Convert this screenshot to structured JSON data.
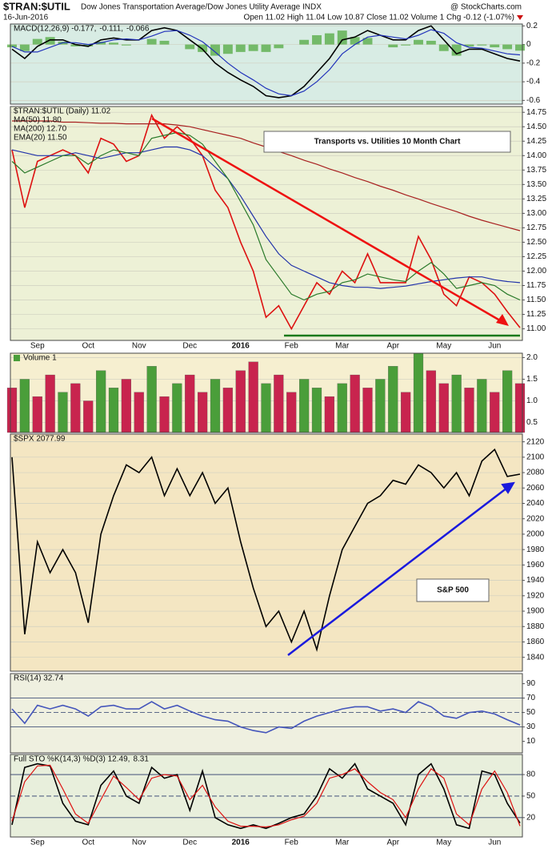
{
  "header": {
    "symbol": "$TRAN:$UTIL",
    "description": "Dow Jones Transportation Average/Dow Jones Utility Average INDX",
    "source": "@ StockCharts.com",
    "date": "16-Jun-2016",
    "quote": "Open 11.02 High 11.04 Low 10.87 Close 11.02 Volume 1 Chg -0.12 (-1.07%)"
  },
  "chart_data": [
    {
      "type": "line",
      "legend": "inline",
      "background": "#d8ece4",
      "grid": true,
      "ylim": [
        -0.64,
        0.22
      ],
      "yticks": [
        0.2,
        0,
        -0.2,
        -0.4,
        -0.6
      ],
      "series": [
        {
          "name": "MACD(12,26,9) -0.177,",
          "color": "#000000",
          "values": [
            -0.05,
            -0.15,
            -0.02,
            0.05,
            0.05,
            0.0,
            -0.02,
            0.05,
            0.07,
            0.05,
            0.05,
            0.15,
            0.18,
            0.15,
            0.05,
            -0.05,
            -0.2,
            -0.3,
            -0.38,
            -0.45,
            -0.55,
            -0.57,
            -0.55,
            -0.45,
            -0.3,
            -0.15,
            0.05,
            0.08,
            0.15,
            0.1,
            0.05,
            0.05,
            0.15,
            0.2,
            0.05,
            -0.1,
            -0.05,
            -0.05,
            -0.1,
            -0.15,
            -0.177
          ]
        },
        {
          "name": "-0.111,",
          "color": "#2233bb",
          "values": [
            -0.02,
            -0.08,
            -0.08,
            -0.03,
            0.02,
            0.02,
            0.0,
            0.02,
            0.05,
            0.06,
            0.05,
            0.09,
            0.14,
            0.15,
            0.1,
            0.03,
            -0.08,
            -0.2,
            -0.3,
            -0.38,
            -0.47,
            -0.53,
            -0.55,
            -0.5,
            -0.4,
            -0.27,
            -0.1,
            0.0,
            0.08,
            0.1,
            0.08,
            0.06,
            0.1,
            0.16,
            0.12,
            0.02,
            -0.03,
            -0.04,
            -0.07,
            -0.1,
            -0.111
          ]
        },
        {
          "name": "-0.066",
          "color": "#5aae4a",
          "type": "bar",
          "values": [
            -0.03,
            -0.07,
            0.06,
            0.08,
            0.03,
            -0.02,
            -0.02,
            0.03,
            0.02,
            -0.01,
            0,
            0.06,
            0.04,
            0,
            -0.05,
            -0.08,
            -0.12,
            -0.1,
            -0.08,
            -0.07,
            -0.08,
            -0.04,
            0,
            0.05,
            0.1,
            0.12,
            0.15,
            0.08,
            0.07,
            0,
            -0.03,
            -0.01,
            0.05,
            0.04,
            -0.07,
            -0.12,
            -0.02,
            -0.01,
            -0.03,
            -0.05,
            -0.066
          ]
        }
      ]
    },
    {
      "type": "line",
      "legend": "stacked",
      "background": "#edf1d6",
      "grid": true,
      "annotation": "Transports vs. Utilities 10 Month Chart",
      "categories": [
        null,
        null,
        "Sep",
        null,
        null,
        null,
        "Oct",
        null,
        null,
        null,
        "Nov",
        null,
        null,
        null,
        "Dec",
        null,
        null,
        null,
        "2016",
        null,
        null,
        null,
        "Feb",
        null,
        null,
        null,
        "Mar",
        null,
        null,
        null,
        "Apr",
        null,
        null,
        null,
        "May",
        null,
        null,
        null,
        "Jun",
        null,
        null
      ],
      "ylim": [
        10.8,
        14.85
      ],
      "yticks": [
        {
          "value": 11,
          "label": "11.00"
        },
        11.25,
        {
          "value": 11.5,
          "label": "11.50"
        },
        11.75,
        {
          "value": 12,
          "label": "12.00"
        },
        12.25,
        {
          "value": 12.5,
          "label": "12.50"
        },
        12.75,
        {
          "value": 13,
          "label": "13.00"
        },
        13.25,
        {
          "value": 13.5,
          "label": "13.50"
        },
        13.75,
        {
          "value": 14,
          "label": "14.00"
        },
        14.25,
        {
          "value": 14.5,
          "label": "14.50"
        },
        14.75
      ],
      "series": [
        {
          "name": "$TRAN:$UTIL (Daily) 11.02",
          "color": "#dd1111",
          "values": [
            14.1,
            13.1,
            13.9,
            14.0,
            14.1,
            14.0,
            13.7,
            14.3,
            14.2,
            13.9,
            14.0,
            14.7,
            14.3,
            14.5,
            14.3,
            14.0,
            13.4,
            13.1,
            12.5,
            12.0,
            11.2,
            11.4,
            11.0,
            11.4,
            11.8,
            11.6,
            12.0,
            11.8,
            12.3,
            11.8,
            11.8,
            11.8,
            12.6,
            12.2,
            11.6,
            11.4,
            11.9,
            11.8,
            11.6,
            11.3,
            11.02
          ]
        },
        {
          "name": "MA(50) 11.80",
          "color": "#2233aa",
          "values": [
            14.1,
            14.05,
            14.0,
            14.0,
            14.0,
            14.05,
            14.0,
            13.95,
            14.0,
            14.05,
            14.05,
            14.1,
            14.15,
            14.15,
            14.1,
            14.0,
            13.8,
            13.6,
            13.3,
            12.95,
            12.6,
            12.3,
            12.1,
            12.0,
            11.9,
            11.8,
            11.75,
            11.72,
            11.72,
            11.7,
            11.72,
            11.74,
            11.78,
            11.82,
            11.85,
            11.88,
            11.9,
            11.9,
            11.85,
            11.82,
            11.8
          ]
        },
        {
          "name": "MA(200) 12.70",
          "color": "#a82020",
          "values": [
            14.6,
            14.6,
            14.6,
            14.6,
            14.58,
            14.58,
            14.57,
            14.56,
            14.56,
            14.55,
            14.55,
            14.55,
            14.55,
            14.53,
            14.5,
            14.45,
            14.4,
            14.35,
            14.3,
            14.22,
            14.15,
            14.07,
            14.0,
            13.92,
            13.85,
            13.77,
            13.7,
            13.62,
            13.55,
            13.47,
            13.4,
            13.32,
            13.25,
            13.17,
            13.1,
            13.03,
            12.95,
            12.88,
            12.82,
            12.76,
            12.7
          ]
        },
        {
          "name": "EMA(20) 11.50",
          "color": "#2a7a2a",
          "values": [
            13.9,
            13.7,
            13.8,
            13.9,
            14.0,
            14.0,
            13.85,
            14.0,
            14.1,
            14.05,
            14.0,
            14.3,
            14.35,
            14.4,
            14.35,
            14.2,
            13.9,
            13.6,
            13.2,
            12.8,
            12.2,
            11.9,
            11.6,
            11.5,
            11.6,
            11.65,
            11.8,
            11.85,
            11.95,
            11.9,
            11.85,
            11.82,
            12.0,
            12.15,
            11.95,
            11.7,
            11.75,
            11.8,
            11.75,
            11.6,
            11.5
          ]
        }
      ]
    },
    {
      "type": "bar",
      "legend": "inline",
      "background": "#f6efd0",
      "grid": true,
      "title": "Volume 1",
      "ylim": [
        0.27,
        2.1
      ],
      "yticks": [
        0.5,
        {
          "value": 1,
          "label": "1.0"
        },
        1.5,
        {
          "value": 2,
          "label": "2.0"
        }
      ],
      "values": [
        1.3,
        1.5,
        1.1,
        1.6,
        1.2,
        1.4,
        1.0,
        1.7,
        1.3,
        1.5,
        1.2,
        1.8,
        1.1,
        1.4,
        1.6,
        1.2,
        1.5,
        1.3,
        1.7,
        1.9,
        1.4,
        1.6,
        1.2,
        1.5,
        1.3,
        1.1,
        1.4,
        1.6,
        1.3,
        1.5,
        1.8,
        1.2,
        2.1,
        1.7,
        1.4,
        1.6,
        1.3,
        1.5,
        1.2,
        1.7,
        1.4
      ],
      "colors": [
        "#c8244e",
        "#4a9e3a",
        "#c8244e",
        "#c8244e",
        "#4a9e3a",
        "#c8244e",
        "#c8244e",
        "#4a9e3a",
        "#4a9e3a",
        "#c8244e",
        "#c8244e",
        "#4a9e3a",
        "#c8244e",
        "#4a9e3a",
        "#c8244e",
        "#c8244e",
        "#4a9e3a",
        "#c8244e",
        "#c8244e",
        "#c8244e",
        "#4a9e3a",
        "#c8244e",
        "#c8244e",
        "#4a9e3a",
        "#4a9e3a",
        "#c8244e",
        "#4a9e3a",
        "#c8244e",
        "#c8244e",
        "#4a9e3a",
        "#4a9e3a",
        "#c8244e",
        "#4a9e3a",
        "#c8244e",
        "#c8244e",
        "#4a9e3a",
        "#c8244e",
        "#4a9e3a",
        "#c8244e",
        "#4a9e3a",
        "#c8244e"
      ]
    },
    {
      "type": "line",
      "legend": "stacked",
      "background": "#f4e6c2",
      "grid": true,
      "annotation": "S&P 500",
      "ylim": [
        1822,
        2130
      ],
      "yticks": [
        1840,
        1860,
        1880,
        1900,
        1920,
        1940,
        1960,
        1980,
        2000,
        2020,
        2040,
        2060,
        2080,
        2100,
        2120
      ],
      "series": [
        {
          "name": "$SPX 2077.99",
          "color": "#000000",
          "values": [
            2100,
            1870,
            1990,
            1950,
            1980,
            1950,
            1885,
            2000,
            2050,
            2090,
            2080,
            2100,
            2050,
            2085,
            2050,
            2080,
            2040,
            2060,
            1990,
            1930,
            1880,
            1900,
            1860,
            1900,
            1850,
            1920,
            1980,
            2010,
            2040,
            2050,
            2070,
            2065,
            2090,
            2080,
            2060,
            2080,
            2050,
            2095,
            2110,
            2075,
            2077.99
          ]
        }
      ]
    },
    {
      "type": "line",
      "legend": "stacked",
      "background": "#eff0e0",
      "grid": false,
      "ylim": [
        -6,
        104
      ],
      "yticks": [
        10,
        30,
        50,
        70,
        90
      ],
      "reference_lines": [
        30,
        50,
        70
      ],
      "series": [
        {
          "name": "RSI(14) 32.74",
          "color": "#4455bb",
          "values": [
            55,
            35,
            60,
            55,
            60,
            55,
            45,
            58,
            60,
            55,
            55,
            65,
            55,
            60,
            52,
            45,
            40,
            38,
            30,
            25,
            22,
            30,
            28,
            38,
            45,
            50,
            55,
            58,
            58,
            52,
            55,
            50,
            65,
            58,
            45,
            42,
            50,
            52,
            48,
            40,
            32.74
          ]
        }
      ]
    },
    {
      "type": "line",
      "legend": "inline",
      "background": "#e8efdc",
      "grid": false,
      "ylim": [
        -7,
        108
      ],
      "yticks": [
        20,
        50,
        80
      ],
      "reference_lines": [
        20,
        50,
        80
      ],
      "series": [
        {
          "name": "Full STO %K(14,3) %D(3) 12.49,",
          "color": "#000000",
          "values": [
            10,
            90,
            95,
            92,
            40,
            15,
            10,
            65,
            85,
            50,
            40,
            90,
            75,
            80,
            30,
            85,
            20,
            10,
            5,
            10,
            5,
            12,
            20,
            25,
            50,
            88,
            75,
            95,
            60,
            50,
            40,
            10,
            80,
            95,
            60,
            10,
            5,
            85,
            80,
            40,
            12.49
          ]
        },
        {
          "name": "8.31",
          "color": "#dd1111",
          "values": [
            15,
            70,
            92,
            93,
            60,
            25,
            12,
            45,
            78,
            62,
            45,
            75,
            80,
            78,
            45,
            65,
            35,
            15,
            8,
            8,
            7,
            10,
            17,
            22,
            40,
            75,
            80,
            88,
            70,
            55,
            45,
            20,
            60,
            88,
            75,
            25,
            10,
            60,
            85,
            55,
            8.31
          ]
        }
      ]
    }
  ]
}
